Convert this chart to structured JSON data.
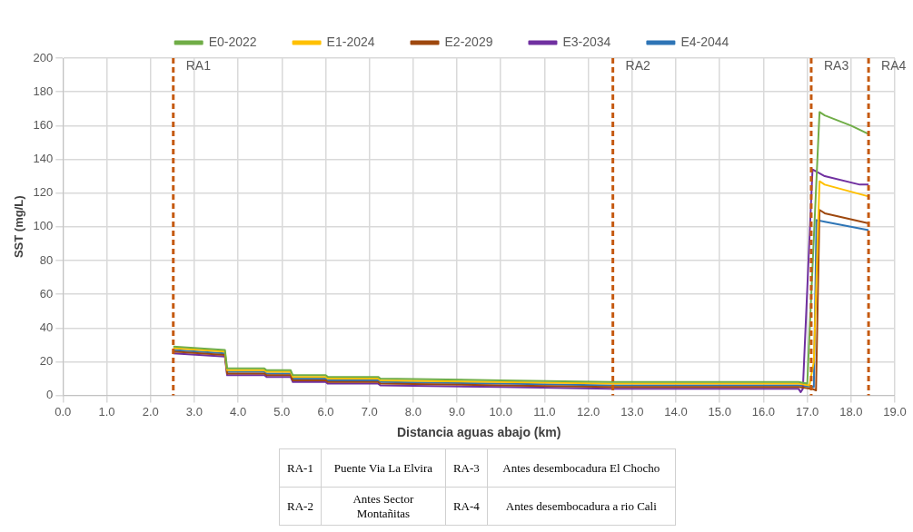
{
  "chart_data": {
    "type": "line",
    "xlabel": "Distancia aguas abajo (km)",
    "ylabel": "SST (mg/L)",
    "xlim": [
      0,
      19
    ],
    "xticks": [
      {
        "value": 0,
        "label": "0.0"
      },
      {
        "value": 1,
        "label": "1.0"
      },
      {
        "value": 2,
        "label": "2.0"
      },
      {
        "value": 3,
        "label": "3.0"
      },
      {
        "value": 4,
        "label": "4.0"
      },
      {
        "value": 5,
        "label": "5.0"
      },
      {
        "value": 6,
        "label": "6.0"
      },
      {
        "value": 7,
        "label": "7.0"
      },
      {
        "value": 8,
        "label": "8.0"
      },
      {
        "value": 9,
        "label": "9.0"
      },
      {
        "value": 10,
        "label": "10.0"
      },
      {
        "value": 11,
        "label": "11.0"
      },
      {
        "value": 12,
        "label": "12.0"
      },
      {
        "value": 13,
        "label": "13.0"
      },
      {
        "value": 14,
        "label": "14.0"
      },
      {
        "value": 15,
        "label": "15.0"
      },
      {
        "value": 16,
        "label": "16.0"
      },
      {
        "value": 17,
        "label": "17.0"
      },
      {
        "value": 18,
        "label": "18.0"
      },
      {
        "value": 19,
        "label": "19.0"
      }
    ],
    "ylim": [
      0,
      200
    ],
    "yticks": [
      0,
      20,
      40,
      60,
      80,
      100,
      120,
      140,
      160,
      180,
      200
    ],
    "grid": true,
    "legend": "top",
    "marker": "none",
    "line_style": "solid",
    "series": [
      {
        "name": "E0-2022",
        "color": "#70ad47",
        "x": [
          2.52,
          3.7,
          3.75,
          4.6,
          4.65,
          5.2,
          5.25,
          6.0,
          6.05,
          7.2,
          7.25,
          10,
          12.5,
          16.8,
          17.0,
          17.28,
          17.4,
          18.0,
          18.4
        ],
        "values": [
          29,
          27,
          16,
          16,
          15,
          15,
          12,
          12,
          11,
          11,
          10,
          9,
          8,
          8,
          7,
          168,
          166,
          160,
          155
        ]
      },
      {
        "name": "E1-2024",
        "color": "#ffc000",
        "x": [
          2.52,
          3.7,
          3.75,
          4.6,
          4.65,
          5.2,
          5.25,
          6.0,
          6.05,
          7.2,
          7.25,
          10,
          12.5,
          16.8,
          17.05,
          17.15,
          17.28,
          17.4,
          18.4
        ],
        "values": [
          28,
          26,
          15,
          15,
          14,
          14,
          11,
          11,
          10,
          10,
          9,
          8,
          7,
          7,
          6,
          20,
          127,
          125,
          118
        ]
      },
      {
        "name": "E2-2029",
        "color": "#9e480e",
        "x": [
          2.52,
          3.7,
          3.75,
          4.6,
          4.65,
          5.2,
          5.25,
          6.0,
          6.05,
          7.2,
          7.25,
          10,
          12.5,
          16.8,
          17.1,
          17.2,
          17.28,
          17.4,
          18.4
        ],
        "values": [
          26,
          24,
          13,
          13,
          12,
          12,
          9,
          9,
          8,
          8,
          7,
          6,
          5,
          5,
          4,
          3,
          110,
          108,
          102
        ]
      },
      {
        "name": "E3-2034",
        "color": "#7030a0",
        "x": [
          2.52,
          3.7,
          3.75,
          4.6,
          4.65,
          5.2,
          5.25,
          6.0,
          6.05,
          7.2,
          7.25,
          10,
          12.5,
          16.8,
          16.85,
          16.9,
          17.12,
          17.4,
          18.2,
          18.4
        ],
        "values": [
          25,
          23,
          12,
          12,
          11,
          11,
          8,
          8,
          7,
          7,
          6,
          5,
          4,
          4,
          2,
          4,
          134,
          130,
          125,
          125
        ]
      },
      {
        "name": "E4-2044",
        "color": "#2e75b6",
        "x": [
          2.52,
          3.7,
          3.75,
          4.6,
          4.65,
          5.2,
          5.25,
          6.0,
          6.05,
          7.2,
          7.25,
          10,
          12.5,
          16.8,
          17.15,
          17.21,
          17.4,
          18.4
        ],
        "values": [
          27,
          25,
          14,
          14,
          13,
          13,
          10,
          10,
          9,
          9,
          8,
          7,
          6,
          6,
          5,
          104,
          103,
          98
        ]
      }
    ],
    "ref_lines": [
      {
        "axis": "x",
        "value": 2.52,
        "label": "RA1",
        "color": "#c55a11",
        "line_style": "dashed"
      },
      {
        "axis": "x",
        "value": 12.56,
        "label": "RA2",
        "color": "#c55a11",
        "line_style": "dashed"
      },
      {
        "axis": "x",
        "value": 17.09,
        "label": "RA3",
        "color": "#c55a11",
        "line_style": "dashed"
      },
      {
        "axis": "x",
        "value": 18.4,
        "label": "RA4",
        "color": "#c55a11",
        "line_style": "dashed"
      }
    ],
    "annotations": [
      "RA-1",
      "Puente Via La Elvira",
      "RA-3",
      "Antes desembocadura El Chocho",
      "RA-2",
      "Antes Sector Montañitas",
      "RA-4",
      "Antes desembocadura a rio Cali"
    ]
  }
}
